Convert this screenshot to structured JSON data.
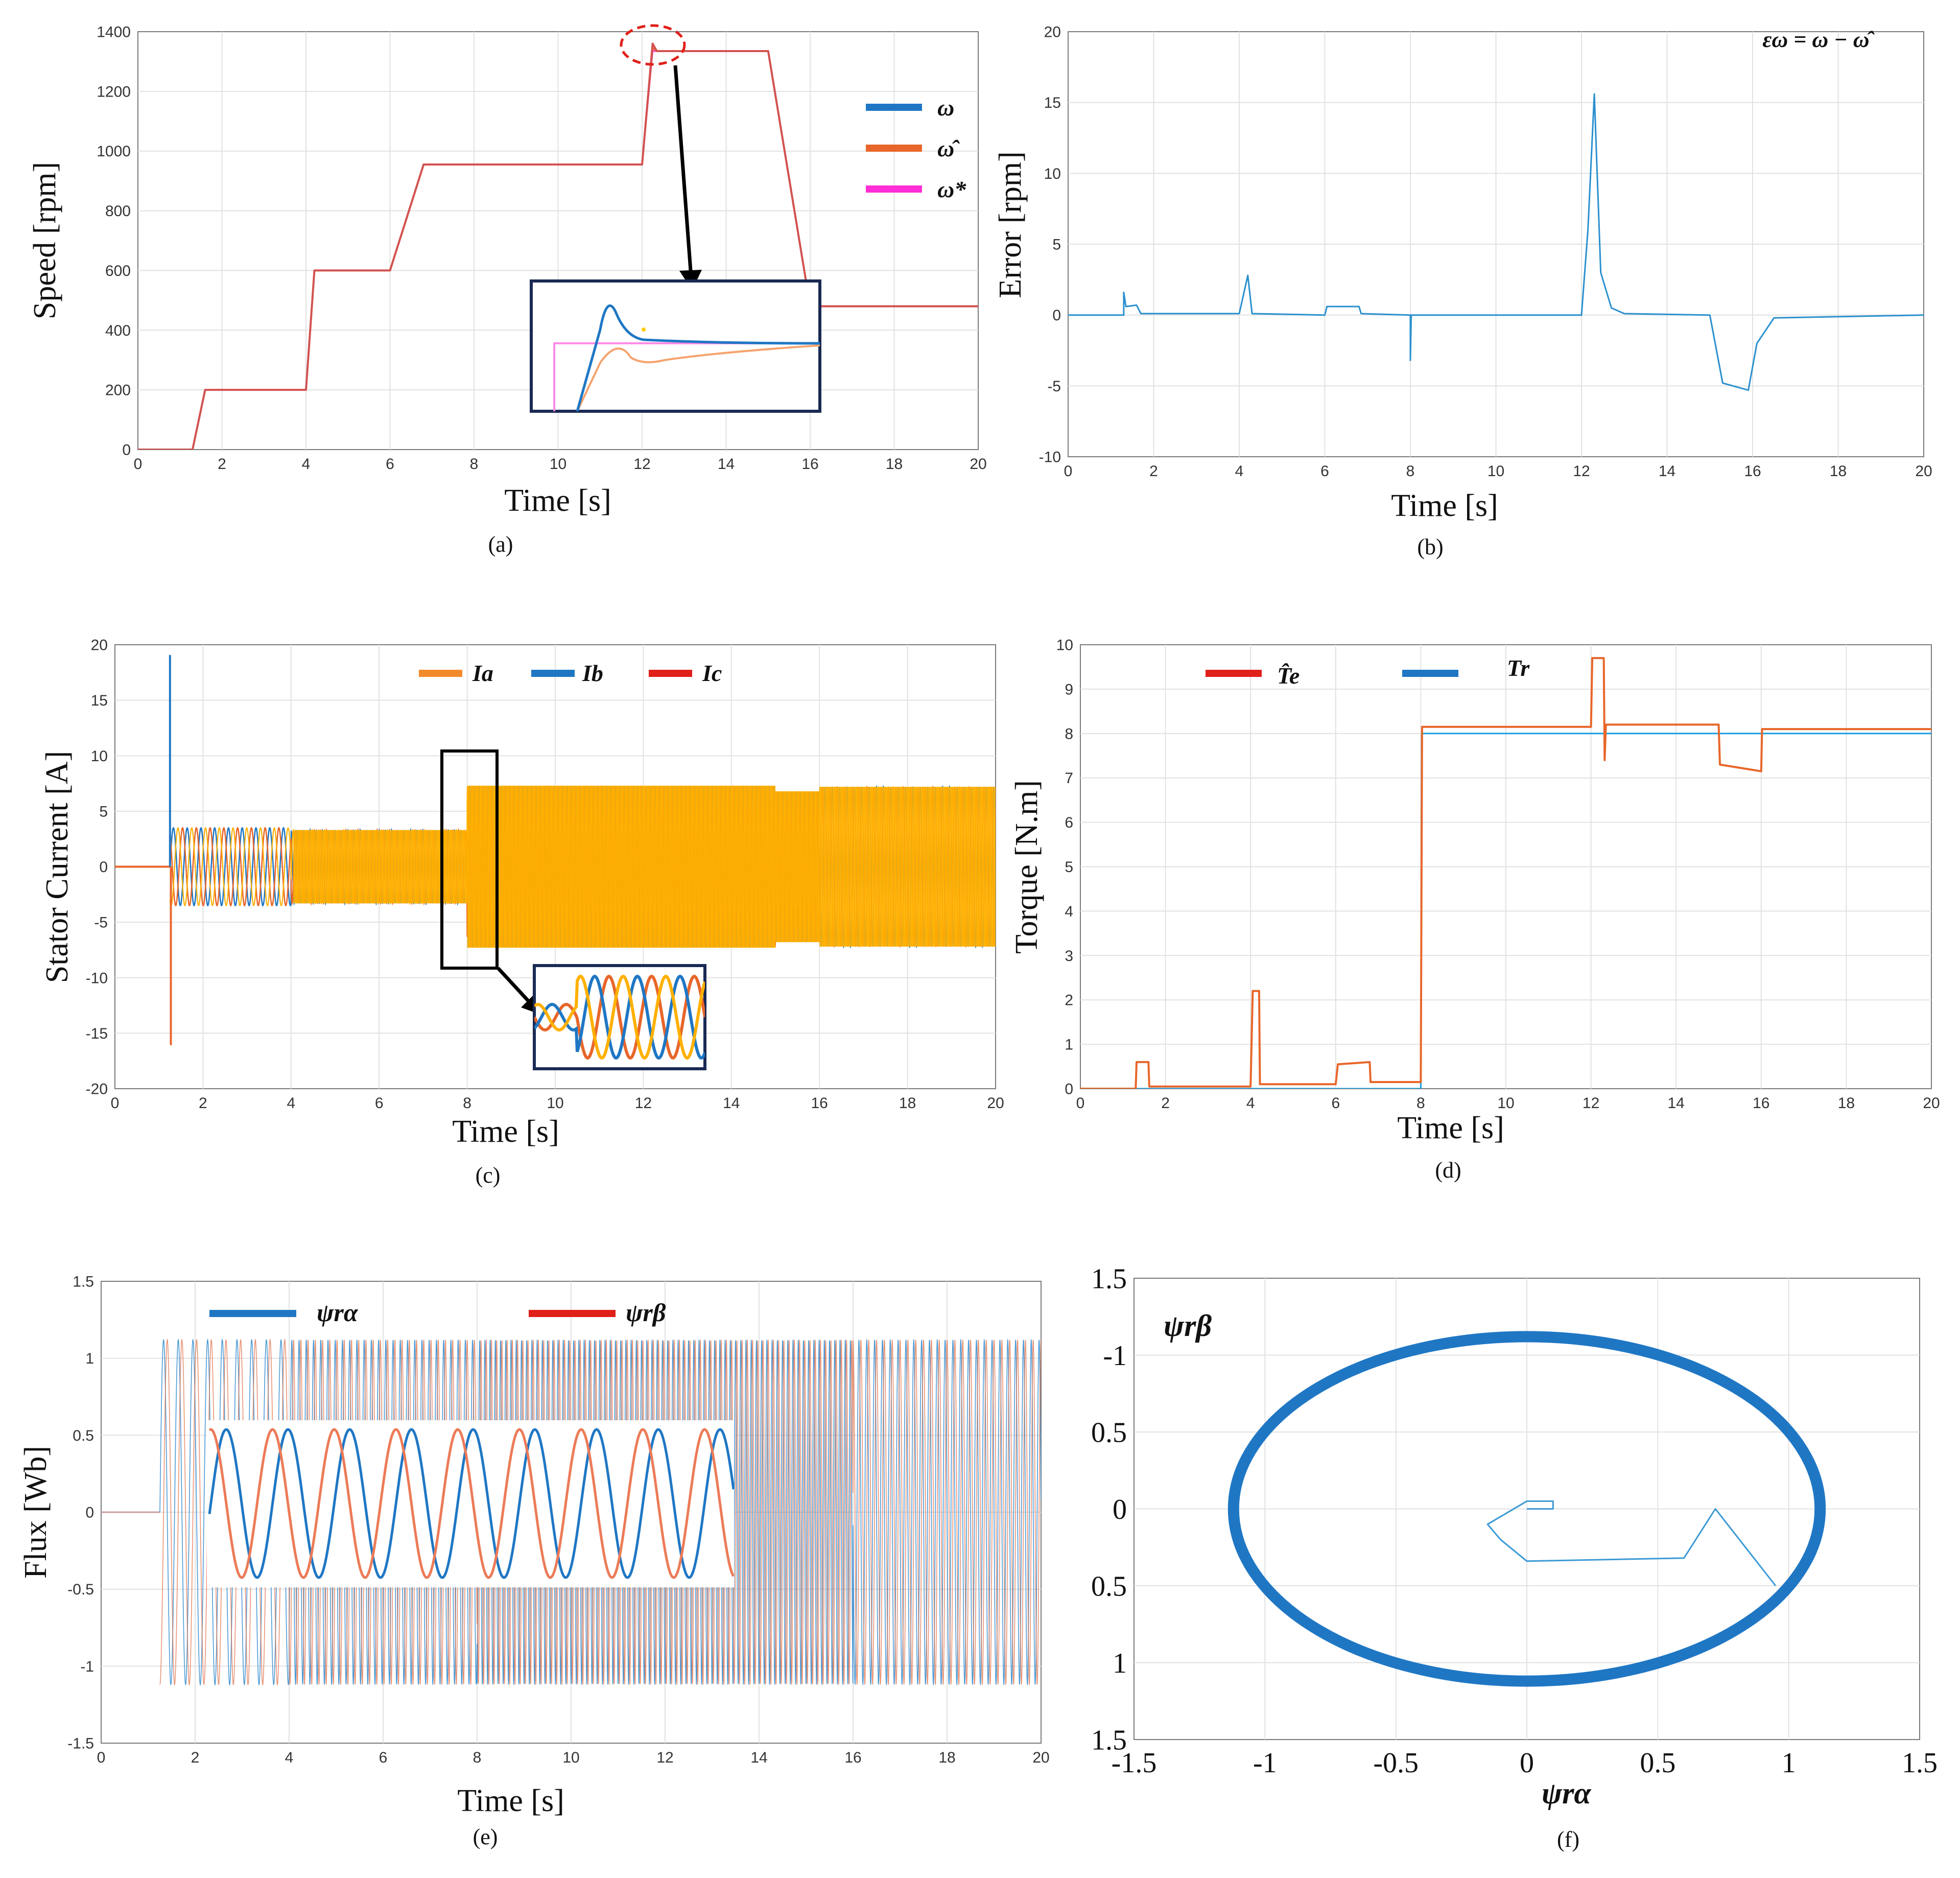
{
  "figure": {
    "panels": {
      "a": {
        "caption": "(a)"
      },
      "b": {
        "caption": "(b)"
      },
      "c": {
        "caption": "(c)"
      },
      "d": {
        "caption": "(d)"
      },
      "e": {
        "caption": "(e)"
      },
      "f": {
        "caption": "(f)"
      }
    }
  },
  "colors": {
    "blue": "#1f77c4",
    "orange": "#e8662a",
    "red": "#e0201a",
    "magenta": "#ff2ed6",
    "speed_line": "#d2524f",
    "amber": "#ffb000",
    "grid": "#e2e2e2"
  },
  "chart_data": [
    {
      "id": "a",
      "type": "line",
      "title": "",
      "xlabel": "Time [s]",
      "ylabel": "Speed [rpm]",
      "xlim": [
        0,
        20
      ],
      "ylim": [
        0,
        1400
      ],
      "xticks": [
        "0",
        "2",
        "4",
        "6",
        "8",
        "10",
        "12",
        "14",
        "16",
        "18",
        "20"
      ],
      "yticks": [
        "0",
        "200",
        "400",
        "600",
        "800",
        "1000",
        "1200",
        "1400"
      ],
      "legend": [
        "ω",
        "ω̂",
        "ω*"
      ],
      "series": [
        {
          "name": "ω",
          "x": [
            0,
            1.3,
            1.6,
            4.0,
            4.2,
            6.0,
            6.8,
            12.0,
            12.25,
            12.35,
            15.0,
            16.0,
            20
          ],
          "y": [
            0,
            0,
            200,
            200,
            600,
            600,
            955,
            955,
            1360,
            1335,
            1335,
            480,
            480
          ]
        },
        {
          "name": "ω̂",
          "x": [
            0,
            1.3,
            1.6,
            4.0,
            4.2,
            6.0,
            6.8,
            12.0,
            12.25,
            12.35,
            15.0,
            16.0,
            20
          ],
          "y": [
            0,
            0,
            200,
            200,
            600,
            600,
            955,
            955,
            1345,
            1335,
            1335,
            480,
            480
          ]
        },
        {
          "name": "ω*",
          "x": [
            0,
            1.3,
            1.6,
            4.0,
            4.2,
            6.0,
            6.8,
            12.0,
            12.25,
            15.0,
            16.0,
            20
          ],
          "y": [
            0,
            0,
            200,
            200,
            600,
            600,
            955,
            955,
            1335,
            1335,
            480,
            480
          ]
        }
      ]
    },
    {
      "id": "b",
      "type": "line",
      "title": "",
      "annotation": "εω = ω − ω̂",
      "xlabel": "Time [s]",
      "ylabel": "Error [rpm]",
      "xlim": [
        0,
        20
      ],
      "ylim": [
        -10,
        20
      ],
      "xticks": [
        "0",
        "2",
        "4",
        "6",
        "8",
        "10",
        "12",
        "14",
        "16",
        "18",
        "20"
      ],
      "yticks": [
        "-10",
        "-5",
        "0",
        "5",
        "10",
        "15",
        "20"
      ],
      "series": [
        {
          "name": "εω",
          "x": [
            0,
            1.3,
            1.3,
            1.35,
            1.6,
            1.7,
            4.0,
            4.2,
            4.3,
            6.0,
            6.05,
            6.8,
            6.85,
            8.0,
            8.0,
            8.02,
            12.0,
            12.15,
            12.3,
            12.45,
            12.7,
            13.0,
            15.0,
            15.3,
            15.9,
            16.1,
            16.5,
            20
          ],
          "y": [
            0,
            0,
            1.6,
            0.6,
            0.7,
            0.1,
            0.1,
            2.8,
            0.1,
            0,
            0.6,
            0.6,
            0.1,
            0,
            -3.2,
            0,
            0,
            6,
            15.6,
            3,
            0.5,
            0.1,
            0,
            -4.8,
            -5.3,
            -2,
            -0.2,
            0
          ]
        }
      ]
    },
    {
      "id": "c",
      "type": "line",
      "title": "",
      "xlabel": "Time [s]",
      "ylabel": "Stator Current [A]",
      "xlim": [
        0,
        20
      ],
      "ylim": [
        -20,
        20
      ],
      "xticks": [
        "0",
        "2",
        "4",
        "6",
        "8",
        "10",
        "12",
        "14",
        "16",
        "18",
        "20"
      ],
      "yticks": [
        "-20",
        "-15",
        "-10",
        "-5",
        "0",
        "5",
        "10",
        "15",
        "20"
      ],
      "legend": [
        "Ia",
        "Ib",
        "Ic"
      ],
      "envelope": {
        "t": [
          1.25,
          4.0,
          4.0,
          8.0,
          8.0,
          15.0,
          15.0,
          16.0,
          16.0,
          20
        ],
        "amplitude": [
          3.5,
          3.5,
          3.3,
          3.3,
          7.3,
          7.3,
          6.8,
          6.8,
          7.2,
          7.2
        ]
      },
      "spikes": {
        "t": 1.25,
        "Ib_max": 19,
        "Ia_min": -16
      }
    },
    {
      "id": "d",
      "type": "line",
      "title": "",
      "xlabel": "Time [s]",
      "ylabel": "Torque [N.m]",
      "xlim": [
        0,
        20
      ],
      "ylim": [
        0,
        10
      ],
      "xticks": [
        "0",
        "2",
        "4",
        "6",
        "8",
        "10",
        "12",
        "14",
        "16",
        "18",
        "20"
      ],
      "yticks": [
        "0",
        "1",
        "2",
        "3",
        "4",
        "5",
        "6",
        "7",
        "8",
        "9",
        "10"
      ],
      "legend": [
        "T̂e",
        "Tr"
      ],
      "series": [
        {
          "name": "T̂e",
          "x": [
            0,
            1.3,
            1.32,
            1.6,
            1.62,
            4.0,
            4.05,
            4.2,
            4.22,
            6.0,
            6.05,
            6.8,
            6.82,
            8.0,
            8.03,
            12.0,
            12.03,
            12.3,
            12.32,
            12.35,
            15.0,
            15.03,
            16.0,
            16.02,
            20
          ],
          "y": [
            0,
            0,
            0.6,
            0.6,
            0.05,
            0.05,
            2.2,
            2.2,
            0.1,
            0.1,
            0.55,
            0.6,
            0.15,
            0.15,
            8.15,
            8.15,
            9.7,
            9.7,
            7.4,
            8.2,
            8.2,
            7.3,
            7.15,
            8.1,
            8.1
          ]
        },
        {
          "name": "Tr",
          "x": [
            0,
            8.0,
            8.02,
            20
          ],
          "y": [
            0,
            0,
            8.0,
            8.0
          ]
        }
      ]
    },
    {
      "id": "e",
      "type": "line",
      "title": "",
      "xlabel": "Time [s]",
      "ylabel": "Flux [Wb]",
      "xlim": [
        0,
        20
      ],
      "ylim": [
        -1.5,
        1.5
      ],
      "xticks": [
        "0",
        "2",
        "4",
        "6",
        "8",
        "10",
        "12",
        "14",
        "16",
        "18",
        "20"
      ],
      "yticks": [
        "-1.5",
        "-1",
        "-0.5",
        "0",
        "0.5",
        "1",
        "1.5"
      ],
      "legend": [
        "ψrα",
        "ψrβ"
      ],
      "amplitude": 1.12,
      "start_time": 1.25
    },
    {
      "id": "f",
      "type": "scatter",
      "title": "",
      "xlabel": "ψrα",
      "ylabel": "ψrβ",
      "xlim": [
        -1.5,
        1.5
      ],
      "ylim": [
        -1.5,
        1.5
      ],
      "xticks": [
        "-1.5",
        "-1",
        "-0.5",
        "0",
        "0.5",
        "1",
        "1.5"
      ],
      "yticks": [
        "1.5",
        "1",
        "0.5",
        "0",
        "0.5",
        "-1",
        "1.5"
      ],
      "circle_radius": 1.12,
      "transient": {
        "x": [
          0,
          0.1,
          0.1,
          0,
          -0.15,
          -0.1,
          0.0,
          0.6,
          0.72,
          0.95
        ],
        "y": [
          0,
          0,
          0.05,
          0.05,
          -0.1,
          -0.2,
          -0.34,
          -0.32,
          0,
          -0.5
        ]
      }
    }
  ]
}
